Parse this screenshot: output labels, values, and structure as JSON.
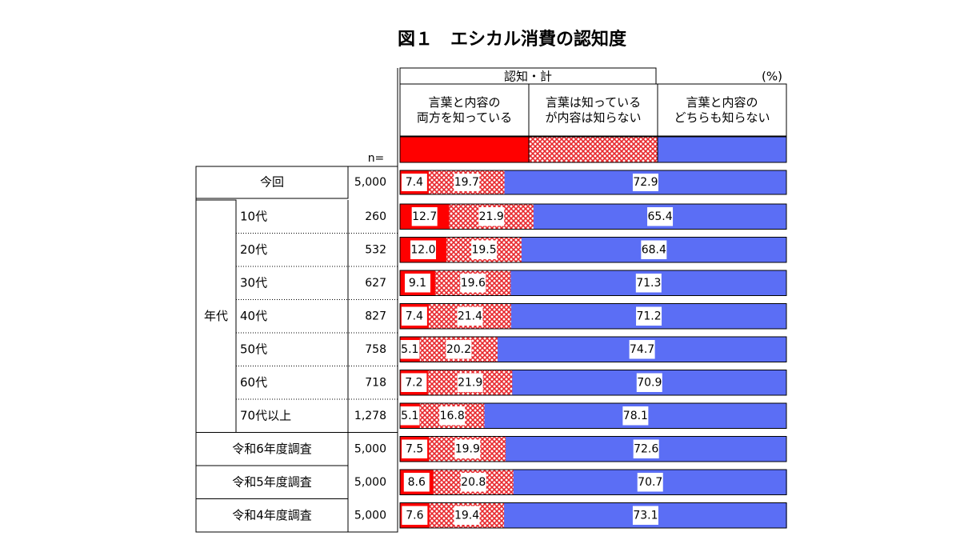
{
  "chart_data": {
    "type": "bar",
    "stacked": true,
    "orientation": "horizontal",
    "title": "図１　エシカル消費の認知度",
    "legend_group_label": "認知・計",
    "unit_label": "(%)",
    "n_label": "n=",
    "group_label": "年代",
    "categories": [
      "今回",
      "10代",
      "20代",
      "30代",
      "40代",
      "50代",
      "60代",
      "70代以上",
      "令和6年度調査",
      "令和5年度調査",
      "令和4年度調査"
    ],
    "n": [
      "5,000",
      "260",
      "532",
      "627",
      "827",
      "758",
      "718",
      "1,278",
      "5,000",
      "5,000",
      "5,000"
    ],
    "xlim": [
      0,
      100
    ],
    "series": [
      {
        "name": "言葉と内容の\n両方を知っている",
        "color": "#ff0000",
        "values": [
          7.4,
          12.7,
          12.0,
          9.1,
          7.4,
          5.1,
          7.2,
          5.1,
          7.5,
          8.6,
          7.6
        ],
        "value_labels": [
          "7.4",
          "12.7",
          "12.0",
          "9.1",
          "7.4",
          "5.1",
          "7.2",
          "5.1",
          "7.5",
          "8.6",
          "7.6"
        ]
      },
      {
        "name": "言葉は知っている\nが内容は知らない",
        "color": "#e8282d",
        "pattern": "crosshatch",
        "values": [
          19.7,
          21.9,
          19.5,
          19.6,
          21.4,
          20.2,
          21.9,
          16.8,
          19.9,
          20.8,
          19.4
        ],
        "value_labels": [
          "19.7",
          "21.9",
          "19.5",
          "19.6",
          "21.4",
          "20.2",
          "21.9",
          "16.8",
          "19.9",
          "20.8",
          "19.4"
        ]
      },
      {
        "name": "言葉と内容の\nどちらも知らない",
        "color": "#5b6ef5",
        "values": [
          72.9,
          65.4,
          68.4,
          71.3,
          71.2,
          74.7,
          70.9,
          78.1,
          72.6,
          70.7,
          73.1
        ],
        "value_labels": [
          "72.9",
          "65.4",
          "68.4",
          "71.3",
          "71.2",
          "74.7",
          "70.9",
          "78.1",
          "72.6",
          "70.7",
          "73.1"
        ]
      }
    ]
  }
}
